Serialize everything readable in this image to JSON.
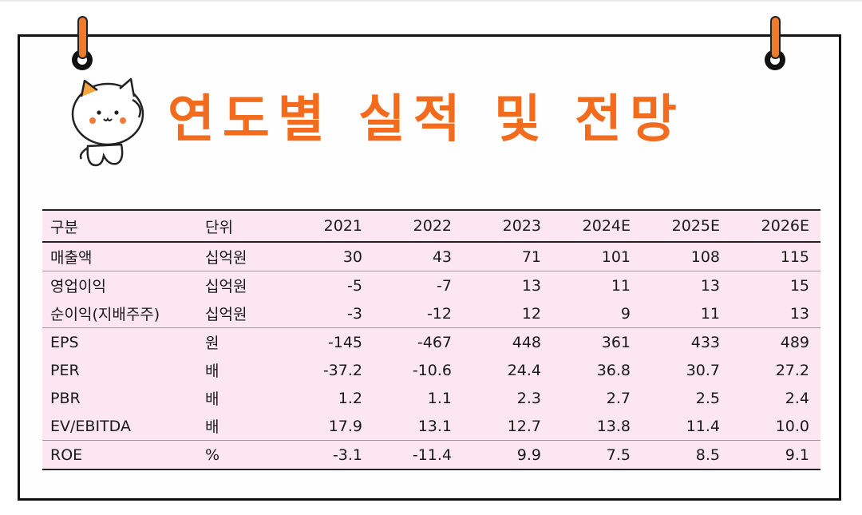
{
  "title": "연도별 실적 및 전망",
  "table": {
    "headers": [
      "구분",
      "단위",
      "2021",
      "2022",
      "2023",
      "2024E",
      "2025E",
      "2026E"
    ],
    "rows": [
      {
        "label": "매출액",
        "unit": "십억원",
        "values": [
          "30",
          "43",
          "71",
          "101",
          "108",
          "115"
        ]
      },
      {
        "label": "영업이익",
        "unit": "십억원",
        "values": [
          "-5",
          "-7",
          "13",
          "11",
          "13",
          "15"
        ]
      },
      {
        "label": "순이익(지배주주)",
        "unit": "십억원",
        "values": [
          "-3",
          "-12",
          "12",
          "9",
          "11",
          "13"
        ]
      },
      {
        "label": "EPS",
        "unit": "원",
        "values": [
          "-145",
          "-467",
          "448",
          "361",
          "433",
          "489"
        ]
      },
      {
        "label": "PER",
        "unit": "배",
        "values": [
          "-37.2",
          "-10.6",
          "24.4",
          "36.8",
          "30.7",
          "27.2"
        ]
      },
      {
        "label": "PBR",
        "unit": "배",
        "values": [
          "1.2",
          "1.1",
          "2.3",
          "2.7",
          "2.5",
          "2.4"
        ]
      },
      {
        "label": "EV/EBITDA",
        "unit": "배",
        "values": [
          "17.9",
          "13.1",
          "12.7",
          "13.8",
          "11.4",
          "10.0"
        ]
      },
      {
        "label": "ROE",
        "unit": "%",
        "values": [
          "-3.1",
          "-11.4",
          "9.9",
          "7.5",
          "8.5",
          "9.1"
        ]
      }
    ]
  },
  "colors": {
    "accent": "#f36b1c",
    "table_bg": "#fbe6f2",
    "frame": "#111111"
  },
  "icons": [
    "mascot-cat-icon",
    "binder-ring-icon",
    "peg-icon"
  ]
}
